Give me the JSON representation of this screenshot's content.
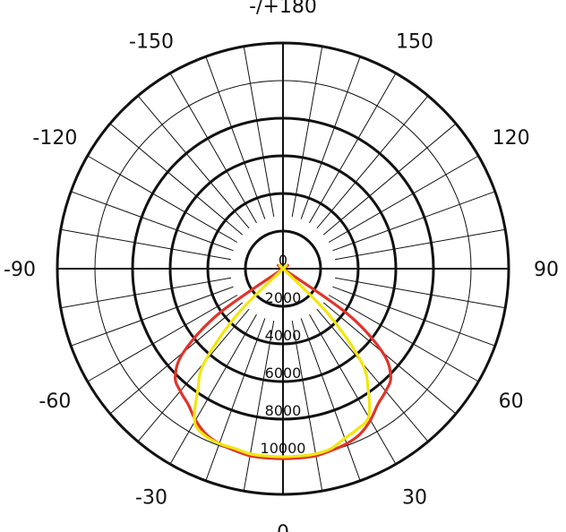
{
  "chart_data": {
    "type": "polar",
    "title": "",
    "angle_labels": [
      {
        "deg": 180,
        "text": "-/+180"
      },
      {
        "deg": 150,
        "text": "150"
      },
      {
        "deg": 120,
        "text": "120"
      },
      {
        "deg": 90,
        "text": "90"
      },
      {
        "deg": 60,
        "text": "60"
      },
      {
        "deg": 30,
        "text": "30"
      },
      {
        "deg": 0,
        "text": "0"
      },
      {
        "deg": -30,
        "text": "-30"
      },
      {
        "deg": -60,
        "text": "-60"
      },
      {
        "deg": -90,
        "text": "-90"
      },
      {
        "deg": -120,
        "text": "-120"
      },
      {
        "deg": -150,
        "text": "-150"
      }
    ],
    "radial_ticks": [
      {
        "value": 0,
        "text": "0"
      },
      {
        "value": 2000,
        "text": "2000"
      },
      {
        "value": 4000,
        "text": "4000"
      },
      {
        "value": 6000,
        "text": "6000"
      },
      {
        "value": 8000,
        "text": "8000"
      },
      {
        "value": 10000,
        "text": "10000"
      }
    ],
    "rlim": [
      0,
      12000
    ],
    "thick_rings": [
      2000,
      4000,
      6000,
      8000,
      12000
    ],
    "thin_ring": 10000,
    "spoke_step_deg": 10,
    "grid": true,
    "series": [
      {
        "color": "#e0342a",
        "angles": [
          -90,
          -60,
          -55,
          -50,
          -45,
          -40,
          -35,
          -30,
          -25,
          -20,
          -15,
          -10,
          -5,
          0,
          5,
          10,
          15,
          20,
          25,
          30,
          35,
          40,
          45,
          50,
          55,
          60,
          90
        ],
        "values": [
          0,
          0,
          4200,
          6900,
          8100,
          8500,
          8800,
          9300,
          9700,
          9900,
          10000,
          10100,
          10100,
          10100,
          10100,
          10100,
          10000,
          9900,
          9700,
          9300,
          8800,
          8500,
          8100,
          6900,
          4200,
          0,
          0
        ]
      },
      {
        "color": "#f2e60f",
        "angles": [
          -90,
          -50,
          -45,
          -40,
          -35,
          -30,
          -25,
          -20,
          -15,
          -10,
          -5,
          0,
          5,
          10,
          15,
          20,
          25,
          30,
          35,
          40,
          45,
          50,
          90
        ],
        "values": [
          0,
          0,
          3400,
          6500,
          7900,
          9400,
          9800,
          9900,
          9900,
          10000,
          10000,
          10000,
          10000,
          10000,
          9900,
          9600,
          9400,
          9100,
          7900,
          6500,
          3400,
          0,
          0
        ]
      }
    ]
  }
}
